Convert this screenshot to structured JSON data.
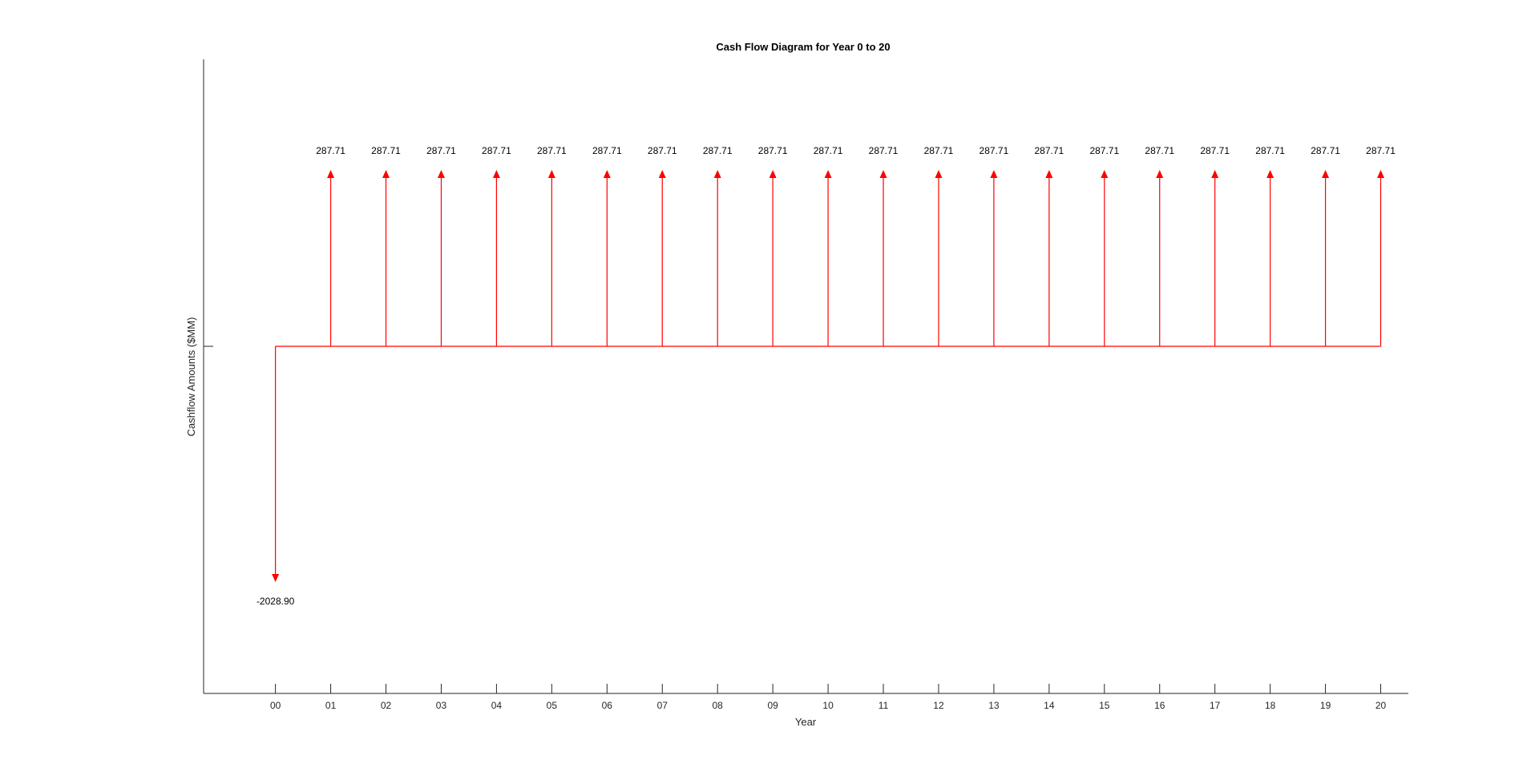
{
  "chart_data": {
    "type": "cash-flow",
    "title": "Cash Flow Diagram for Year 0 to 20",
    "xlabel": "Year",
    "ylabel": "Cashflow Amounts ($MM)",
    "categories": [
      "00",
      "01",
      "02",
      "03",
      "04",
      "05",
      "06",
      "07",
      "08",
      "09",
      "10",
      "11",
      "12",
      "13",
      "14",
      "15",
      "16",
      "17",
      "18",
      "19",
      "20"
    ],
    "x": [
      0,
      1,
      2,
      3,
      4,
      5,
      6,
      7,
      8,
      9,
      10,
      11,
      12,
      13,
      14,
      15,
      16,
      17,
      18,
      19,
      20
    ],
    "values": [
      -2028.9,
      287.71,
      287.71,
      287.71,
      287.71,
      287.71,
      287.71,
      287.71,
      287.71,
      287.71,
      287.71,
      287.71,
      287.71,
      287.71,
      287.71,
      287.71,
      287.71,
      287.71,
      287.71,
      287.71,
      287.71
    ],
    "data_labels": [
      "-2028.90",
      "287.71",
      "287.71",
      "287.71",
      "287.71",
      "287.71",
      "287.71",
      "287.71",
      "287.71",
      "287.71",
      "287.71",
      "287.71",
      "287.71",
      "287.71",
      "287.71",
      "287.71",
      "287.71",
      "287.71",
      "287.71",
      "287.71",
      "287.71"
    ],
    "xlim": [
      -1.3,
      20.5
    ],
    "series_color": "#ff0000",
    "axis_color": "#262626",
    "grid": false
  }
}
